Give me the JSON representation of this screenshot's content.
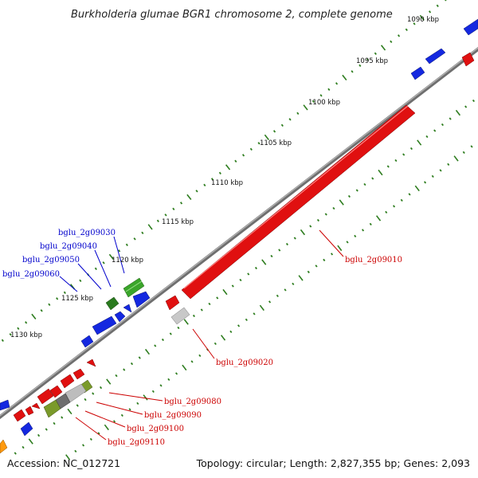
{
  "title": "Burkholderia glumae BGR1 chromosome 2, complete genome",
  "footer": {
    "accession": "Accession: NC_012721",
    "summary": "Topology: circular; Length: 2,827,355 bp; Genes: 2,093"
  },
  "colors": {
    "backbone": "#8a8a8a",
    "tick_major": "#2e7d1f",
    "tick_minor": "#2e7d1f",
    "forward_label": "#0000cc",
    "reverse_label": "#cc0000",
    "gene_blue": "#1428e0",
    "gene_red": "#e01010",
    "gene_green": "#3aa52a",
    "gene_darkgreen": "#2a7a1e",
    "gene_olive": "#7a9a2a",
    "gene_gray": "#bdbdbd",
    "gene_orange": "#ff9a10"
  },
  "scale_labels": [
    "1090 kbp",
    "1095 kbp",
    "1100 kbp",
    "1105 kbp",
    "1110 kbp",
    "1115 kbp",
    "1120 kbp",
    "1125 kbp",
    "1130 kbp"
  ],
  "gene_labels": {
    "forward": [
      "bglu_2g09030",
      "bglu_2g09040",
      "bglu_2g09050",
      "bglu_2g09060"
    ],
    "reverse": [
      "bglu_2g09010",
      "bglu_2g09020",
      "bglu_2g09080",
      "bglu_2g09090",
      "bglu_2g09100",
      "bglu_2g09110"
    ]
  }
}
